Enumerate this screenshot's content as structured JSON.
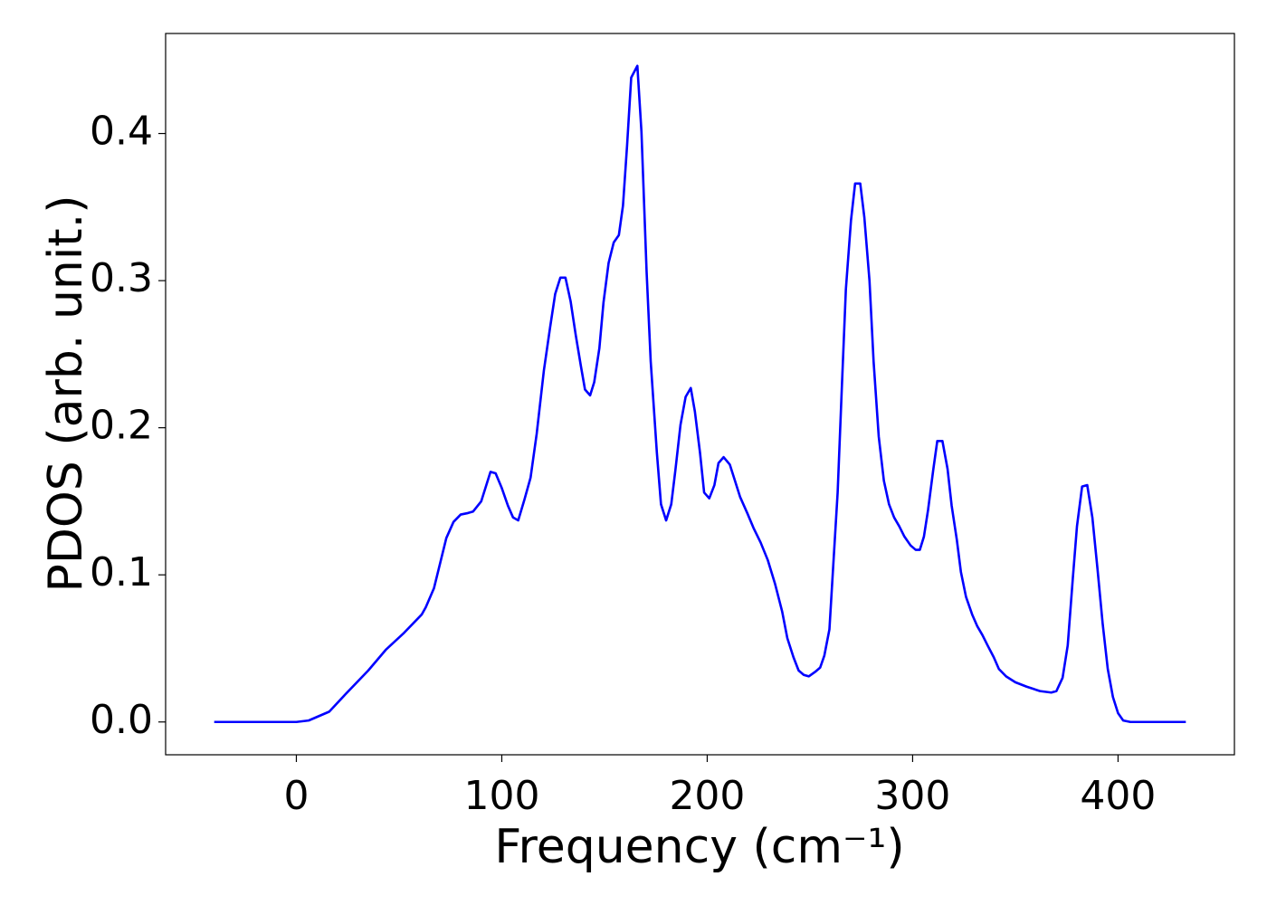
{
  "chart_data": {
    "type": "line",
    "xlabel": "Frequency (cm⁻¹)",
    "ylabel": "PDOS (arb. unit.)",
    "color": "#0000ff",
    "xlim": [
      -63.65,
      456.65
    ],
    "ylim": [
      -0.0223,
      0.468
    ],
    "xticks": [
      0,
      100,
      200,
      300,
      400
    ],
    "yticks": [
      {
        "value": 0,
        "label": "0.0"
      },
      0.1,
      0.2,
      0.3,
      0.4
    ],
    "x": [
      -40,
      -20,
      0,
      6,
      16,
      24,
      35,
      43.5,
      52,
      61,
      63,
      67,
      73,
      76.5,
      80,
      83.5,
      86,
      90,
      94.5,
      97,
      100,
      103,
      105.5,
      108,
      111,
      114,
      117,
      120.5,
      123.5,
      126,
      128.5,
      131,
      133.5,
      136,
      138.5,
      140.5,
      143,
      145,
      147.5,
      149.5,
      152,
      154.5,
      157,
      159,
      161,
      163,
      166,
      168,
      170.5,
      172.5,
      175.5,
      177.5,
      180,
      182.5,
      184.5,
      187,
      189.5,
      192,
      194,
      196.5,
      198.5,
      201,
      203.5,
      205.5,
      208,
      211,
      213.5,
      216,
      219.5,
      222.5,
      226,
      229.5,
      233,
      236.5,
      239,
      242,
      244.5,
      247,
      249.5,
      252.5,
      255,
      257,
      259.5,
      261,
      263.5,
      265.5,
      267.5,
      270,
      272,
      274.5,
      276.5,
      279,
      281,
      283.5,
      286,
      288.5,
      291,
      293.5,
      296,
      299,
      301.5,
      303.5,
      305.5,
      307.5,
      310,
      312,
      314.5,
      317,
      319,
      321.5,
      323.5,
      326,
      329,
      331.5,
      334,
      336.5,
      339.5,
      342,
      345.5,
      350,
      355.5,
      362,
      367.5,
      370,
      373,
      375.5,
      378,
      380,
      382.5,
      385,
      387.5,
      390,
      392.5,
      395,
      397.5,
      400,
      402.5,
      406,
      433
    ],
    "values": [
      0,
      0,
      0,
      0.001,
      0.007,
      0.019,
      0.035,
      0.049,
      0.06,
      0.073,
      0.078,
      0.091,
      0.125,
      0.136,
      0.141,
      0.142,
      0.143,
      0.15,
      0.17,
      0.169,
      0.159,
      0.147,
      0.139,
      0.137,
      0.151,
      0.166,
      0.196,
      0.239,
      0.268,
      0.291,
      0.302,
      0.302,
      0.286,
      0.263,
      0.242,
      0.226,
      0.222,
      0.231,
      0.254,
      0.285,
      0.312,
      0.326,
      0.331,
      0.351,
      0.392,
      0.438,
      0.446,
      0.401,
      0.306,
      0.245,
      0.183,
      0.148,
      0.137,
      0.148,
      0.171,
      0.202,
      0.221,
      0.227,
      0.211,
      0.183,
      0.156,
      0.152,
      0.161,
      0.176,
      0.18,
      0.175,
      0.164,
      0.153,
      0.142,
      0.132,
      0.122,
      0.11,
      0.094,
      0.075,
      0.057,
      0.044,
      0.035,
      0.032,
      0.031,
      0.034,
      0.037,
      0.045,
      0.063,
      0.098,
      0.156,
      0.226,
      0.294,
      0.341,
      0.366,
      0.366,
      0.343,
      0.3,
      0.245,
      0.194,
      0.164,
      0.148,
      0.139,
      0.133,
      0.126,
      0.12,
      0.117,
      0.117,
      0.126,
      0.144,
      0.171,
      0.191,
      0.191,
      0.172,
      0.147,
      0.124,
      0.102,
      0.085,
      0.073,
      0.065,
      0.059,
      0.052,
      0.044,
      0.036,
      0.031,
      0.027,
      0.024,
      0.021,
      0.02,
      0.021,
      0.03,
      0.052,
      0.098,
      0.133,
      0.16,
      0.161,
      0.139,
      0.104,
      0.067,
      0.036,
      0.017,
      0.006,
      0.001,
      0,
      0
    ]
  }
}
